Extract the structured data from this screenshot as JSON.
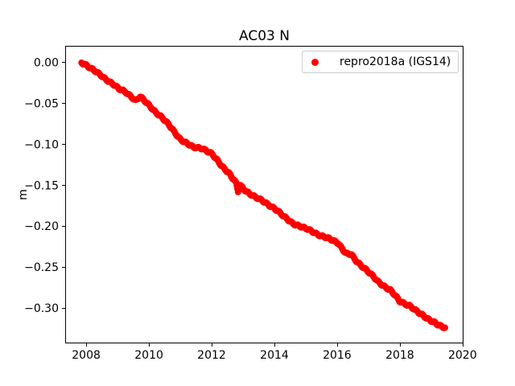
{
  "window": {
    "background": "#ffffff"
  },
  "chart_data": {
    "type": "scatter",
    "title": "AC03 N",
    "xlabel": "",
    "ylabel": "m",
    "grid": false,
    "legend": {
      "position": "upper right",
      "entries": [
        {
          "label": "repro2018a (IGS14)",
          "marker": "dot",
          "color": "#ff0000"
        }
      ]
    },
    "axis": {
      "xlim": [
        2007.33,
        2020.03
      ],
      "ylim": [
        -0.343,
        0.02
      ],
      "xticks": [
        2008,
        2010,
        2012,
        2014,
        2016,
        2018,
        2020
      ],
      "yticks": [
        0,
        -0.05,
        -0.1,
        -0.15,
        -0.2,
        -0.25,
        -0.3
      ],
      "spine_color": "#000000",
      "tick_label_color": "#000000"
    },
    "series": [
      {
        "name": "repro2018a (IGS14)",
        "color": "#ff0000",
        "marker": "point",
        "marker_size_px": 8,
        "points": [
          [
            2007.85,
            -0.0005
          ],
          [
            2008.0,
            -0.003
          ],
          [
            2008.2,
            -0.0085
          ],
          [
            2008.4,
            -0.0145
          ],
          [
            2008.6,
            -0.02
          ],
          [
            2008.85,
            -0.026
          ],
          [
            2009.05,
            -0.033
          ],
          [
            2009.25,
            -0.0365
          ],
          [
            2009.45,
            -0.042
          ],
          [
            2009.58,
            -0.0465
          ],
          [
            2009.72,
            -0.042
          ],
          [
            2009.9,
            -0.049
          ],
          [
            2010.0,
            -0.0525
          ],
          [
            2010.2,
            -0.06
          ],
          [
            2010.38,
            -0.066
          ],
          [
            2010.64,
            -0.077
          ],
          [
            2010.9,
            -0.089
          ],
          [
            2011.0,
            -0.0935
          ],
          [
            2011.2,
            -0.099
          ],
          [
            2011.41,
            -0.104
          ],
          [
            2011.7,
            -0.1045
          ],
          [
            2012.0,
            -0.112
          ],
          [
            2012.3,
            -0.1253
          ],
          [
            2012.55,
            -0.135
          ],
          [
            2012.78,
            -0.148
          ],
          [
            2012.84,
            -0.158
          ],
          [
            2012.9,
            -0.15
          ],
          [
            2013.1,
            -0.157
          ],
          [
            2013.4,
            -0.165
          ],
          [
            2013.72,
            -0.1714
          ],
          [
            2014.0,
            -0.178
          ],
          [
            2014.3,
            -0.1885
          ],
          [
            2014.6,
            -0.1965
          ],
          [
            2014.95,
            -0.2025
          ],
          [
            2015.2,
            -0.206
          ],
          [
            2015.5,
            -0.212
          ],
          [
            2015.8,
            -0.2165
          ],
          [
            2016.03,
            -0.22
          ],
          [
            2016.28,
            -0.2335
          ],
          [
            2016.45,
            -0.235
          ],
          [
            2016.6,
            -0.242
          ],
          [
            2016.9,
            -0.252
          ],
          [
            2017.31,
            -0.268
          ],
          [
            2017.7,
            -0.278
          ],
          [
            2018.0,
            -0.292
          ],
          [
            2018.33,
            -0.297
          ],
          [
            2018.6,
            -0.306
          ],
          [
            2018.85,
            -0.312
          ],
          [
            2019.1,
            -0.317
          ],
          [
            2019.25,
            -0.3215
          ],
          [
            2019.44,
            -0.3245
          ]
        ]
      }
    ]
  }
}
